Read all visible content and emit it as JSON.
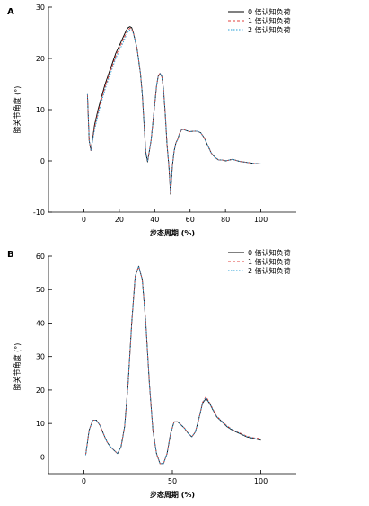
{
  "chart_data": [
    {
      "panel_label": "A",
      "type": "line",
      "xlabel": "步态周期 (%)",
      "ylabel": "膝关节角度 (°)",
      "xlim": [
        -20,
        120
      ],
      "ylim": [
        -10,
        30
      ],
      "xticks": [
        0,
        20,
        40,
        60,
        80,
        100
      ],
      "yticks": [
        -10,
        0,
        10,
        20,
        30
      ],
      "legend": "top-right",
      "series": [
        {
          "name": "0 倍认知负荷",
          "color": "#000000",
          "dash": "",
          "x": [
            2,
            3,
            4,
            6,
            8,
            10,
            12,
            14,
            16,
            18,
            20,
            22,
            24,
            25,
            26,
            27,
            28,
            30,
            32,
            33,
            34,
            35,
            36,
            38,
            40,
            41,
            42,
            43,
            44,
            45,
            46,
            47,
            48,
            49,
            50,
            51,
            52,
            53,
            54,
            55,
            56,
            58,
            60,
            62,
            64,
            66,
            68,
            70,
            72,
            74,
            76,
            78,
            80,
            84,
            88,
            92,
            96,
            100
          ],
          "y": [
            13,
            4,
            2,
            7,
            10,
            12.5,
            15,
            17,
            19,
            21,
            22.5,
            24,
            25.5,
            26,
            26.2,
            26,
            25,
            22,
            17,
            13,
            7,
            1.5,
            -0.2,
            4,
            11,
            14.5,
            16.5,
            17,
            16.5,
            14,
            9,
            3,
            -1,
            -6.5,
            -1,
            2,
            3.5,
            4.2,
            5.3,
            6,
            6.2,
            5.9,
            5.7,
            5.8,
            5.8,
            5.5,
            4.5,
            3,
            1.5,
            0.7,
            0.2,
            0.2,
            0,
            0.3,
            -0.1,
            -0.3,
            -0.5,
            -0.6
          ]
        },
        {
          "name": "1 倍认知负荷",
          "color": "#e0413c",
          "dash": "3,2",
          "x": [
            2,
            3,
            4,
            6,
            8,
            10,
            12,
            14,
            16,
            18,
            20,
            22,
            24,
            25,
            26,
            27,
            28,
            30,
            32,
            33,
            34,
            35,
            36,
            38,
            40,
            41,
            42,
            43,
            44,
            45,
            46,
            47,
            48,
            49,
            50,
            51,
            52,
            53,
            54,
            55,
            56,
            58,
            60,
            62,
            64,
            66,
            68,
            70,
            72,
            74,
            76,
            78,
            80,
            84,
            88,
            92,
            96,
            100
          ],
          "y": [
            13,
            4,
            2,
            6.5,
            9.5,
            12,
            14.5,
            16.5,
            18.5,
            20.5,
            22,
            23.5,
            25,
            25.6,
            25.9,
            25.8,
            25,
            22,
            17,
            13,
            7.2,
            1.8,
            0,
            4,
            11,
            14.6,
            16.6,
            17.1,
            16.6,
            14.1,
            9.2,
            3.2,
            -0.8,
            -6.2,
            -0.9,
            2,
            3.5,
            4.2,
            5.3,
            6,
            6.2,
            5.9,
            5.7,
            5.8,
            5.8,
            5.5,
            4.5,
            3,
            1.5,
            0.7,
            0.2,
            0.2,
            0,
            0.3,
            -0.1,
            -0.3,
            -0.5,
            -0.6
          ]
        },
        {
          "name": "2 倍认知负荷",
          "color": "#2a9fd6",
          "dash": "1.5,1.5",
          "x": [
            2,
            3,
            4,
            6,
            8,
            10,
            12,
            14,
            16,
            18,
            20,
            22,
            24,
            25,
            26,
            27,
            28,
            30,
            32,
            33,
            34,
            35,
            36,
            38,
            40,
            41,
            42,
            43,
            44,
            45,
            46,
            47,
            48,
            49,
            50,
            51,
            52,
            53,
            54,
            55,
            56,
            58,
            60,
            62,
            64,
            66,
            68,
            70,
            72,
            74,
            76,
            78,
            80,
            84,
            88,
            92,
            96,
            100
          ],
          "y": [
            13,
            4,
            2,
            6,
            9,
            11.5,
            14,
            16,
            18,
            20,
            21.5,
            23,
            24.5,
            25.2,
            25.6,
            25.5,
            24.8,
            22,
            17,
            13,
            7.2,
            1.8,
            0,
            4,
            11,
            14.6,
            16.6,
            17.1,
            16.6,
            14.1,
            9.2,
            3.2,
            -0.8,
            -6.2,
            -0.9,
            2,
            3.5,
            4.2,
            5.3,
            6,
            6.2,
            5.9,
            5.7,
            5.8,
            5.8,
            5.5,
            4.5,
            3,
            1.5,
            0.7,
            0.2,
            0.2,
            0,
            0.3,
            -0.1,
            -0.3,
            -0.5,
            -0.6
          ]
        }
      ]
    },
    {
      "panel_label": "B",
      "type": "line",
      "xlabel": "步态周期 (%)",
      "ylabel": "膝关节角度 (°)",
      "xlim": [
        -20,
        120
      ],
      "ylim": [
        -5,
        60
      ],
      "xticks": [
        0,
        50,
        100
      ],
      "yticks": [
        0,
        10,
        20,
        30,
        40,
        50,
        60
      ],
      "legend": "top-right",
      "series": [
        {
          "name": "0 倍认知负荷",
          "color": "#000000",
          "dash": "",
          "x": [
            1,
            3,
            5,
            7,
            9,
            11,
            13,
            15,
            17,
            19,
            21,
            23,
            25,
            27,
            29,
            31,
            33,
            35,
            37,
            39,
            41,
            43,
            45,
            47,
            49,
            51,
            53,
            55,
            57,
            59,
            61,
            63,
            65,
            67,
            69,
            71,
            73,
            75,
            77,
            79,
            81,
            84,
            88,
            92,
            96,
            100
          ],
          "y": [
            0.5,
            8,
            11,
            11,
            9.5,
            7,
            4.5,
            3,
            2,
            1,
            3,
            9,
            22,
            40,
            54,
            57,
            53,
            40,
            22,
            8,
            1,
            -2,
            -2,
            1,
            7,
            10.5,
            10.5,
            9.5,
            8.5,
            7,
            6,
            7.5,
            11.5,
            16,
            17.5,
            16,
            14,
            12,
            11,
            10,
            9,
            8,
            7,
            6,
            5.5,
            5
          ]
        },
        {
          "name": "1 倍认知负荷",
          "color": "#e0413c",
          "dash": "3,2",
          "x": [
            1,
            3,
            5,
            7,
            9,
            11,
            13,
            15,
            17,
            19,
            21,
            23,
            25,
            27,
            29,
            31,
            33,
            35,
            37,
            39,
            41,
            43,
            45,
            47,
            49,
            51,
            53,
            55,
            57,
            59,
            61,
            63,
            65,
            67,
            69,
            71,
            73,
            75,
            77,
            79,
            81,
            84,
            88,
            92,
            96,
            100
          ],
          "y": [
            0.5,
            8,
            11,
            11,
            9.5,
            7,
            4.5,
            3,
            2,
            1,
            3,
            9,
            22,
            40,
            54,
            57,
            53,
            40,
            22,
            8,
            1,
            -2,
            -2,
            1,
            7,
            10.5,
            10.5,
            9.5,
            8.5,
            7,
            6,
            7.5,
            11.5,
            16.3,
            18,
            16.3,
            14.2,
            12.2,
            11.2,
            10.2,
            9.2,
            8.2,
            7.2,
            6.2,
            5.7,
            5.5
          ]
        },
        {
          "name": "2 倍认知负荷",
          "color": "#2a9fd6",
          "dash": "1.5,1.5",
          "x": [
            1,
            3,
            5,
            7,
            9,
            11,
            13,
            15,
            17,
            19,
            21,
            23,
            25,
            27,
            29,
            31,
            33,
            35,
            37,
            39,
            41,
            43,
            45,
            47,
            49,
            51,
            53,
            55,
            57,
            59,
            61,
            63,
            65,
            67,
            69,
            71,
            73,
            75,
            77,
            79,
            81,
            84,
            88,
            92,
            96,
            100
          ],
          "y": [
            0.5,
            8,
            11,
            11,
            9.5,
            7,
            4.5,
            3,
            2,
            1,
            3,
            9,
            22,
            40,
            54,
            57,
            53,
            40,
            22,
            8,
            1,
            -2,
            -2,
            1,
            7,
            10.5,
            10.5,
            9.5,
            8.5,
            7,
            6,
            7.5,
            11.5,
            16.1,
            17.7,
            16.1,
            14.1,
            12.1,
            11.1,
            10.1,
            9.1,
            8.1,
            7.1,
            6.1,
            5.6,
            5.2
          ]
        }
      ]
    }
  ]
}
